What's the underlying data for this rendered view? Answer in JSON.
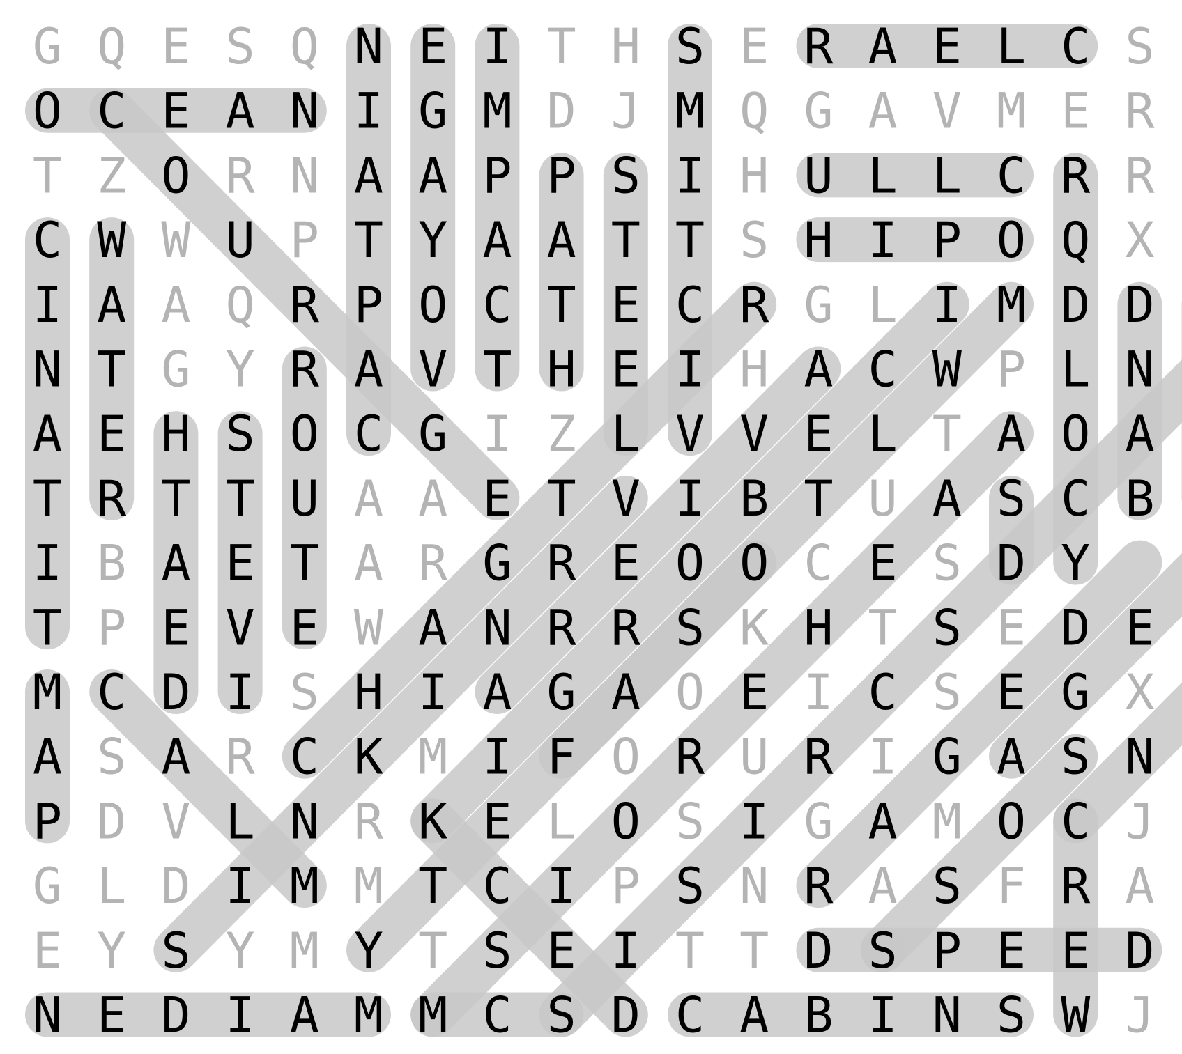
{
  "grid": [
    "GQESQNEITHSERAELCS",
    "OCEANIGMDJMQGAVMER",
    "TZORNAAPPSIHULLCRR",
    "CWWUPTYAATTSHIPOQX",
    "IAAQRPOCTECRGLIMDD",
    "NTGYRAVTHEIHACWPLN",
    "AEHSOCGIZLVVELTAOA",
    "TRTTUAAETVIBTUASCB",
    "IBAETARGREOOCESDY",
    "TPEVEWANRRSKHTSEDE",
    "MCDISHIAGAOEICSEGX",
    "ASARCKMIFORURIGASN",
    "PDVLNRKELOSIGAMOCJ",
    "GLDIMMTCIPSNRASFRA",
    "EYSYMYTSEITTDSPEED",
    "NEDIAMMCSDCABINSWJ"
  ],
  "found": [
    {
      "word": "CLEAR",
      "from": [
        0,
        16
      ],
      "to": [
        0,
        12
      ]
    },
    {
      "word": "OCEAN",
      "from": [
        1,
        0
      ],
      "to": [
        1,
        4
      ]
    },
    {
      "word": "NIATPAC",
      "from": [
        0,
        5
      ],
      "to": [
        6,
        5
      ]
    },
    {
      "word": "EGAYOV",
      "from": [
        0,
        6
      ],
      "to": [
        5,
        6
      ]
    },
    {
      "word": "IMPACT",
      "from": [
        0,
        7
      ],
      "to": [
        5,
        7
      ]
    },
    {
      "word": "PATH",
      "from": [
        2,
        8
      ],
      "to": [
        5,
        8
      ]
    },
    {
      "word": "STEEL",
      "from": [
        2,
        9
      ],
      "to": [
        6,
        9
      ]
    },
    {
      "word": "SMITCIV",
      "from": [
        0,
        10
      ],
      "to": [
        6,
        10
      ]
    },
    {
      "word": "HULL",
      "from": [
        2,
        12
      ],
      "to": [
        2,
        15
      ]
    },
    {
      "word": "SHIP",
      "from": [
        3,
        12
      ],
      "to": [
        3,
        15
      ]
    },
    {
      "word": "COMPASS",
      "from": [
        2,
        16
      ],
      "to": [
        8,
        16
      ]
    },
    {
      "word": "DLOC",
      "from": [
        4,
        17
      ],
      "to": [
        7,
        17
      ]
    },
    {
      "word": "DNAB",
      "from": [
        4,
        18
      ],
      "to": [
        7,
        18
      ]
    },
    {
      "word": "CINATIT",
      "from": [
        3,
        0
      ],
      "to": [
        9,
        0
      ]
    },
    {
      "word": "WATER",
      "from": [
        3,
        1
      ],
      "to": [
        7,
        1
      ]
    },
    {
      "word": "HTAE",
      "from": [
        6,
        2
      ],
      "to": [
        10,
        2
      ]
    },
    {
      "word": "STEVI",
      "from": [
        6,
        3
      ],
      "to": [
        10,
        3
      ]
    },
    {
      "word": "ROUTE",
      "from": [
        5,
        4
      ],
      "to": [
        9,
        4
      ]
    },
    {
      "word": "MAP",
      "from": [
        10,
        0
      ],
      "to": [
        12,
        0
      ]
    },
    {
      "word": "AE",
      "from": [
        7,
        15
      ],
      "to": [
        8,
        15
      ]
    },
    {
      "word": "NEDIAM",
      "from": [
        15,
        0
      ],
      "to": [
        15,
        5
      ]
    },
    {
      "word": "CABINS",
      "from": [
        15,
        10
      ],
      "to": [
        15,
        15
      ]
    },
    {
      "word": "SPEED",
      "from": [
        14,
        13
      ],
      "to": [
        14,
        17
      ]
    },
    {
      "word": "CREW",
      "from": [
        12,
        16
      ],
      "to": [
        15,
        16
      ]
    },
    {
      "word": "MSD",
      "from": [
        15,
        6
      ],
      "to": [
        15,
        8
      ]
    },
    {
      "word": "TD",
      "from": [
        14,
        12
      ],
      "to": [
        14,
        13
      ]
    },
    {
      "word": "diag-1",
      "from": [
        1,
        1
      ],
      "to": [
        7,
        7
      ]
    },
    {
      "word": "diag-2",
      "from": [
        10,
        1
      ],
      "to": [
        13,
        4
      ]
    },
    {
      "word": "diag-3",
      "from": [
        12,
        6
      ],
      "to": [
        15,
        9
      ]
    },
    {
      "word": "diag-4",
      "from": [
        14,
        2
      ],
      "to": [
        7,
        9
      ]
    },
    {
      "word": "diag-5",
      "from": [
        11,
        4
      ],
      "to": [
        4,
        11
      ]
    },
    {
      "word": "diag-6",
      "from": [
        14,
        5
      ],
      "to": [
        4,
        15
      ]
    },
    {
      "word": "diag-7",
      "from": [
        15,
        8
      ],
      "to": [
        5,
        18
      ]
    },
    {
      "word": "diag-8",
      "from": [
        15,
        6
      ],
      "to": [
        6,
        15
      ]
    },
    {
      "word": "diag-9",
      "from": [
        12,
        6
      ],
      "to": [
        4,
        14
      ]
    },
    {
      "word": "diag-10",
      "from": [
        11,
        8
      ],
      "to": [
        8,
        11
      ]
    },
    {
      "word": "diag-11",
      "from": [
        10,
        7
      ],
      "to": [
        5,
        12
      ]
    },
    {
      "word": "diag-12",
      "from": [
        14,
        13
      ],
      "to": [
        11,
        16
      ]
    },
    {
      "word": "diag-13",
      "from": [
        13,
        12
      ],
      "to": [
        8,
        17
      ]
    },
    {
      "word": "diag-14",
      "from": [
        11,
        15
      ],
      "to": [
        8,
        18
      ]
    },
    {
      "word": "diag-15",
      "from": [
        12,
        16
      ],
      "to": [
        10,
        18
      ]
    }
  ],
  "colors": {
    "background": "#ffffff",
    "highlight": "#c8c8c8",
    "letter_used": "#000000",
    "letter_unused": "#b4b4b4"
  }
}
